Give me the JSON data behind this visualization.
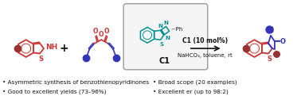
{
  "background_color": "#ffffff",
  "teal_color": "#009090",
  "red_color": "#cc3333",
  "blue_color": "#3333bb",
  "dark_red": "#993333",
  "black": "#111111",
  "catalyst_label": "C1",
  "conditions_line1": "C1 (10 mol%)",
  "conditions_line2": "NaHCO₃, toluene, rt",
  "bullet1": "• Asymmetric synthesis of benzothienopyridinones",
  "bullet2": "• Good to excellent yields (73–96%)",
  "bullet3": "• Broad scope (20 examples)",
  "bullet4": "• Excellent er (up to 98:2)",
  "figsize": [
    3.78,
    1.4
  ],
  "dpi": 100
}
